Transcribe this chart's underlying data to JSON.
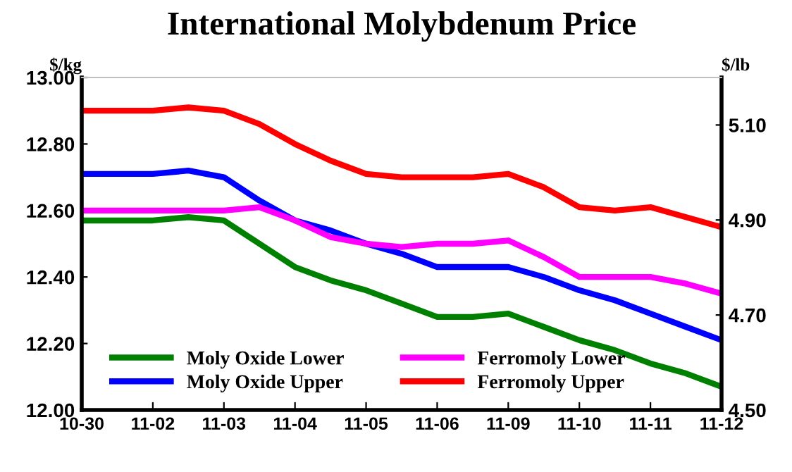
{
  "chart_data": {
    "type": "line",
    "title": "International Molybdenum Price",
    "ylabel": "$/kg",
    "y2label": "$/lb",
    "categories": [
      "10-30",
      null,
      "11-02",
      null,
      "11-03",
      null,
      "11-04",
      null,
      "11-05",
      null,
      "11-06",
      null,
      "11-09",
      null,
      "11-10",
      null,
      "11-11",
      null,
      "11-12"
    ],
    "series": [
      {
        "name": "Moly Oxide Lower",
        "color": "#008000",
        "values": [
          12.57,
          12.57,
          12.57,
          12.58,
          12.57,
          12.5,
          12.43,
          12.39,
          12.36,
          12.32,
          12.28,
          12.28,
          12.29,
          12.25,
          12.21,
          12.18,
          12.14,
          12.11,
          12.07
        ]
      },
      {
        "name": "Moly Oxide Upper",
        "color": "#0000ff",
        "values": [
          12.71,
          12.71,
          12.71,
          12.72,
          12.7,
          12.63,
          12.57,
          12.54,
          12.5,
          12.47,
          12.43,
          12.43,
          12.43,
          12.4,
          12.36,
          12.33,
          12.29,
          12.25,
          12.21
        ]
      },
      {
        "name": "Ferromoly Lower",
        "color": "#ff00ff",
        "values": [
          12.6,
          12.6,
          12.6,
          12.6,
          12.6,
          12.61,
          12.57,
          12.52,
          12.5,
          12.49,
          12.5,
          12.5,
          12.51,
          12.46,
          12.4,
          12.4,
          12.4,
          12.38,
          12.35
        ]
      },
      {
        "name": "Ferromoly Upper",
        "color": "#ff0000",
        "values": [
          12.9,
          12.9,
          12.9,
          12.91,
          12.9,
          12.86,
          12.8,
          12.75,
          12.71,
          12.7,
          12.7,
          12.7,
          12.71,
          12.67,
          12.61,
          12.6,
          12.61,
          12.58,
          12.55
        ]
      }
    ],
    "ylim": [
      12.0,
      13.0
    ],
    "yticks": [
      {
        "value": 12.0,
        "label": "12.00"
      },
      {
        "value": 12.2,
        "label": "12.20"
      },
      {
        "value": 12.4,
        "label": "12.40"
      },
      {
        "value": 12.6,
        "label": "12.60"
      },
      {
        "value": 12.8,
        "label": "12.80"
      },
      {
        "value": 13.0,
        "label": "13.00"
      }
    ],
    "y2lim": [
      4.5,
      5.2
    ],
    "y2ticks": [
      {
        "value": 4.5,
        "label": "4.50"
      },
      {
        "value": 4.7,
        "label": "4.70"
      },
      {
        "value": 4.9,
        "label": "4.90"
      },
      {
        "value": 5.1,
        "label": "5.10"
      }
    ],
    "legend": "bottom left",
    "grid": false,
    "marker": "none",
    "line_style": "solid"
  }
}
